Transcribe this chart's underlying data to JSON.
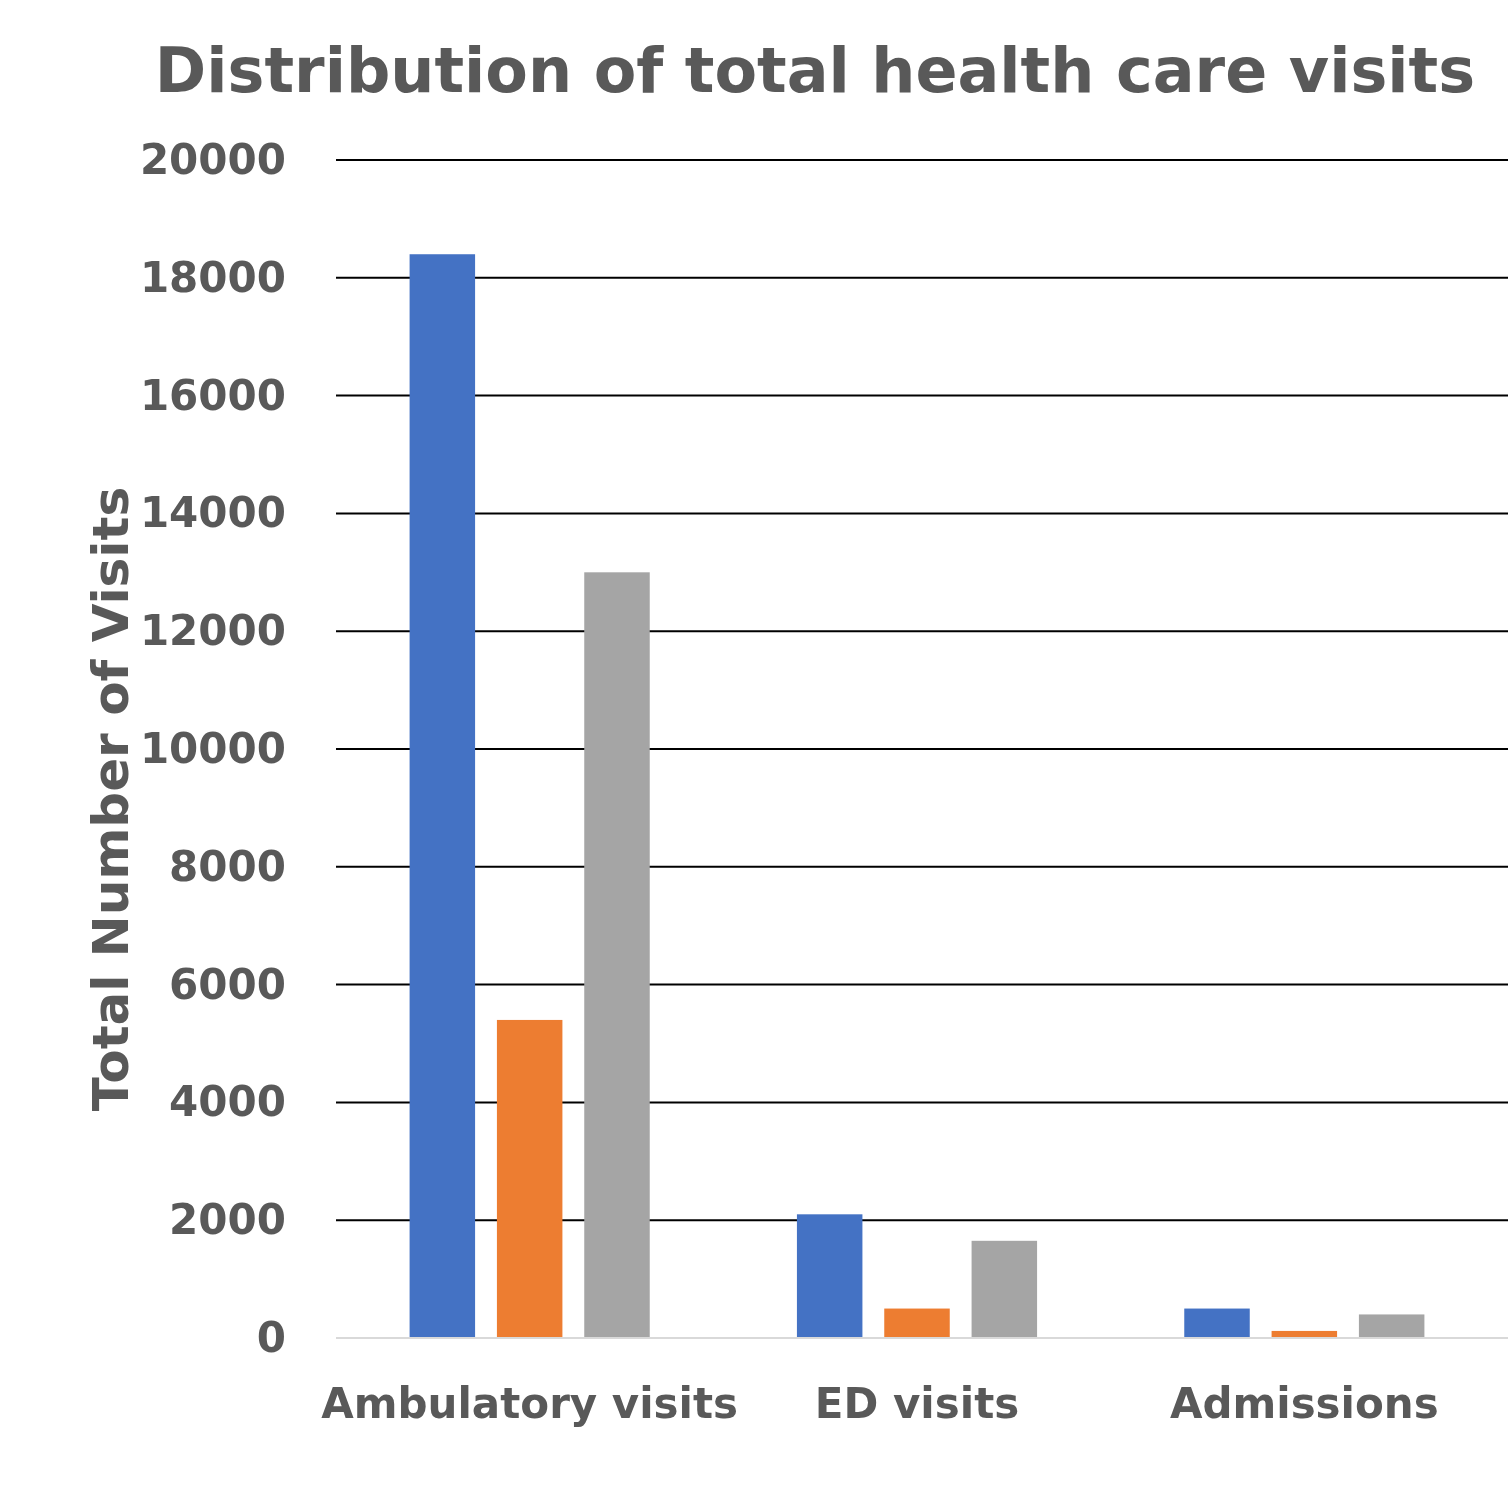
{
  "chart_data": {
    "type": "bar",
    "title": "Distribution of total health care visits",
    "ylabel": "Total Number of Visits",
    "categories": [
      "Ambulatory visits",
      "ED visits",
      "Admissions"
    ],
    "series": [
      {
        "color": "#4472c4",
        "values": [
          18400,
          2100,
          500
        ]
      },
      {
        "color": "#ed7d31",
        "values": [
          5400,
          500,
          120
        ]
      },
      {
        "color": "#a5a5a5",
        "values": [
          13000,
          1650,
          400
        ]
      }
    ],
    "ylim": [
      0,
      20000
    ],
    "yticks": [
      0,
      2000,
      4000,
      6000,
      8000,
      10000,
      12000,
      14000,
      16000,
      18000,
      20000
    ],
    "grid": "y"
  }
}
